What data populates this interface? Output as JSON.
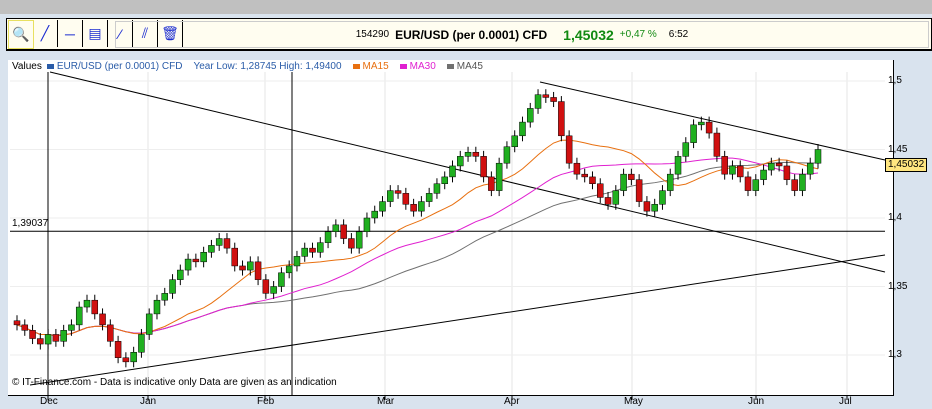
{
  "toolbar": {
    "tools": [
      {
        "icon": "zoom-icon",
        "glyph": "🔍"
      },
      {
        "icon": "trendline-icon",
        "glyph": "╱"
      },
      {
        "icon": "horizontal-line-icon",
        "glyph": "─"
      },
      {
        "icon": "indicator-icon",
        "glyph": "▤"
      },
      {
        "icon": "parallel-line-icon",
        "glyph": "⁄"
      },
      {
        "icon": "channel-icon",
        "glyph": "⫽"
      },
      {
        "icon": "trash-icon",
        "glyph": "🗑"
      }
    ]
  },
  "quote": {
    "id": "154290",
    "name": "EUR/USD (per 0.0001) CFD",
    "price": "1,45032",
    "change": "+0,47 %",
    "time": "6:52"
  },
  "legend": {
    "label": "Values",
    "series": "EUR/USD (per 0.0001) CFD",
    "range": "Year Low: 1,28745 High: 1,49400",
    "ma15": "MA15",
    "ma30": "MA30",
    "ma45": "MA45"
  },
  "colors": {
    "series": "#2a5ca8",
    "ma15": "#e87010",
    "ma30": "#e020d0",
    "ma45": "#707070",
    "up": "#20b020",
    "down": "#d01010"
  },
  "credit": "© IT-Finance.com  -  Data is indicative only Data are given as an indication",
  "hline_label": "1,39037",
  "last_price": "1,45032",
  "chart_data": {
    "type": "candlestick",
    "x_ticks": [
      "Dec",
      "Jan",
      "Feb",
      "Mar",
      "Apr",
      "May",
      "Jun",
      "Jul"
    ],
    "y_ticks": [
      "1,5",
      "1,45",
      "1,4",
      "1,35",
      "1,3"
    ],
    "ylim": [
      1.275,
      1.515
    ],
    "hline": 1.39037,
    "closes": [
      1.322,
      1.318,
      1.312,
      1.308,
      1.315,
      1.31,
      1.318,
      1.322,
      1.335,
      1.34,
      1.33,
      1.322,
      1.31,
      1.298,
      1.295,
      1.302,
      1.315,
      1.33,
      1.34,
      1.345,
      1.355,
      1.362,
      1.37,
      1.368,
      1.375,
      1.38,
      1.385,
      1.378,
      1.365,
      1.362,
      1.368,
      1.355,
      1.345,
      1.35,
      1.36,
      1.365,
      1.372,
      1.378,
      1.375,
      1.382,
      1.39,
      1.395,
      1.385,
      1.378,
      1.39,
      1.4,
      1.405,
      1.412,
      1.42,
      1.418,
      1.41,
      1.405,
      1.412,
      1.418,
      1.425,
      1.43,
      1.438,
      1.445,
      1.448,
      1.445,
      1.43,
      1.42,
      1.44,
      1.452,
      1.46,
      1.47,
      1.48,
      1.49,
      1.488,
      1.485,
      1.46,
      1.44,
      1.432,
      1.43,
      1.425,
      1.415,
      1.41,
      1.42,
      1.432,
      1.428,
      1.412,
      1.405,
      1.41,
      1.42,
      1.432,
      1.445,
      1.455,
      1.468,
      1.47,
      1.462,
      1.445,
      1.432,
      1.438,
      1.43,
      1.42,
      1.428,
      1.435,
      1.44,
      1.438,
      1.428,
      1.42,
      1.432,
      1.44,
      1.45
    ]
  }
}
